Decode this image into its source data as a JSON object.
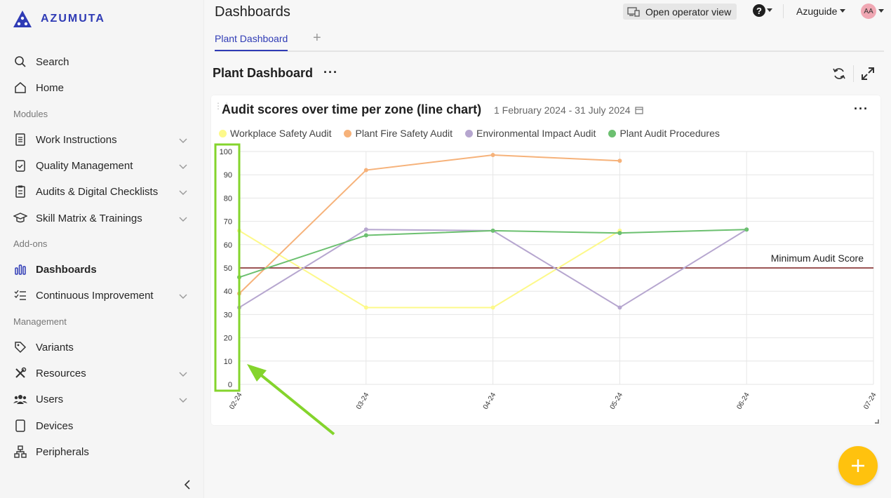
{
  "app": {
    "brand": "AZUMUTA"
  },
  "sidebar": {
    "items": [
      {
        "label": "Search",
        "icon": "search-icon"
      },
      {
        "label": "Home",
        "icon": "home-icon"
      },
      {
        "label": "Work Instructions",
        "icon": "document-icon"
      },
      {
        "label": "Quality Management",
        "icon": "clipboard-check-icon"
      },
      {
        "label": "Audits & Digital Checklists",
        "icon": "clipboard-list-icon"
      },
      {
        "label": "Skill Matrix & Trainings",
        "icon": "graduation-cap-icon"
      },
      {
        "label": "Dashboards",
        "icon": "bar-chart-icon"
      },
      {
        "label": "Continuous Improvement",
        "icon": "checklist-icon"
      },
      {
        "label": "Variants",
        "icon": "tag-icon"
      },
      {
        "label": "Resources",
        "icon": "tools-icon"
      },
      {
        "label": "Users",
        "icon": "users-icon"
      },
      {
        "label": "Devices",
        "icon": "tablet-icon"
      },
      {
        "label": "Peripherals",
        "icon": "network-icon"
      }
    ],
    "sections": [
      "Modules",
      "Add-ons",
      "Management"
    ]
  },
  "header": {
    "title": "Dashboards",
    "operator_button": "Open operator view",
    "account": "Azuguide",
    "avatar": "AA"
  },
  "tabs": [
    {
      "label": "Plant Dashboard"
    }
  ],
  "dashboard": {
    "title": "Plant Dashboard"
  },
  "widget": {
    "title": "Audit scores over time per zone (line chart)",
    "date_range": "1 February 2024 - 31 July 2024"
  },
  "chart_data": {
    "type": "line",
    "x": [
      "02-24",
      "03-24",
      "04-24",
      "05-24",
      "06-24",
      "07-24"
    ],
    "ylim": [
      0,
      100
    ],
    "yticks": [
      0,
      10,
      20,
      30,
      40,
      50,
      60,
      70,
      80,
      90,
      100
    ],
    "grid": true,
    "legend_position": "top-left",
    "series": [
      {
        "name": "Workplace Safety Audit",
        "color": "#fdf98a",
        "values": [
          66,
          33,
          33,
          66,
          null,
          null
        ]
      },
      {
        "name": "Plant Fire Safety Audit",
        "color": "#f6b27a",
        "values": [
          39,
          92,
          98.5,
          96,
          null,
          null
        ]
      },
      {
        "name": "Environmental Impact Audit",
        "color": "#b6a6cf",
        "values": [
          33,
          66.5,
          66,
          33,
          66.5,
          null
        ]
      },
      {
        "name": "Plant Audit Procedures",
        "color": "#6cc070",
        "values": [
          46,
          64,
          66,
          65,
          66.5,
          null
        ]
      }
    ],
    "reference_line": {
      "label": "Minimum Audit Score",
      "value": 50,
      "color": "#7a1c1c"
    }
  }
}
